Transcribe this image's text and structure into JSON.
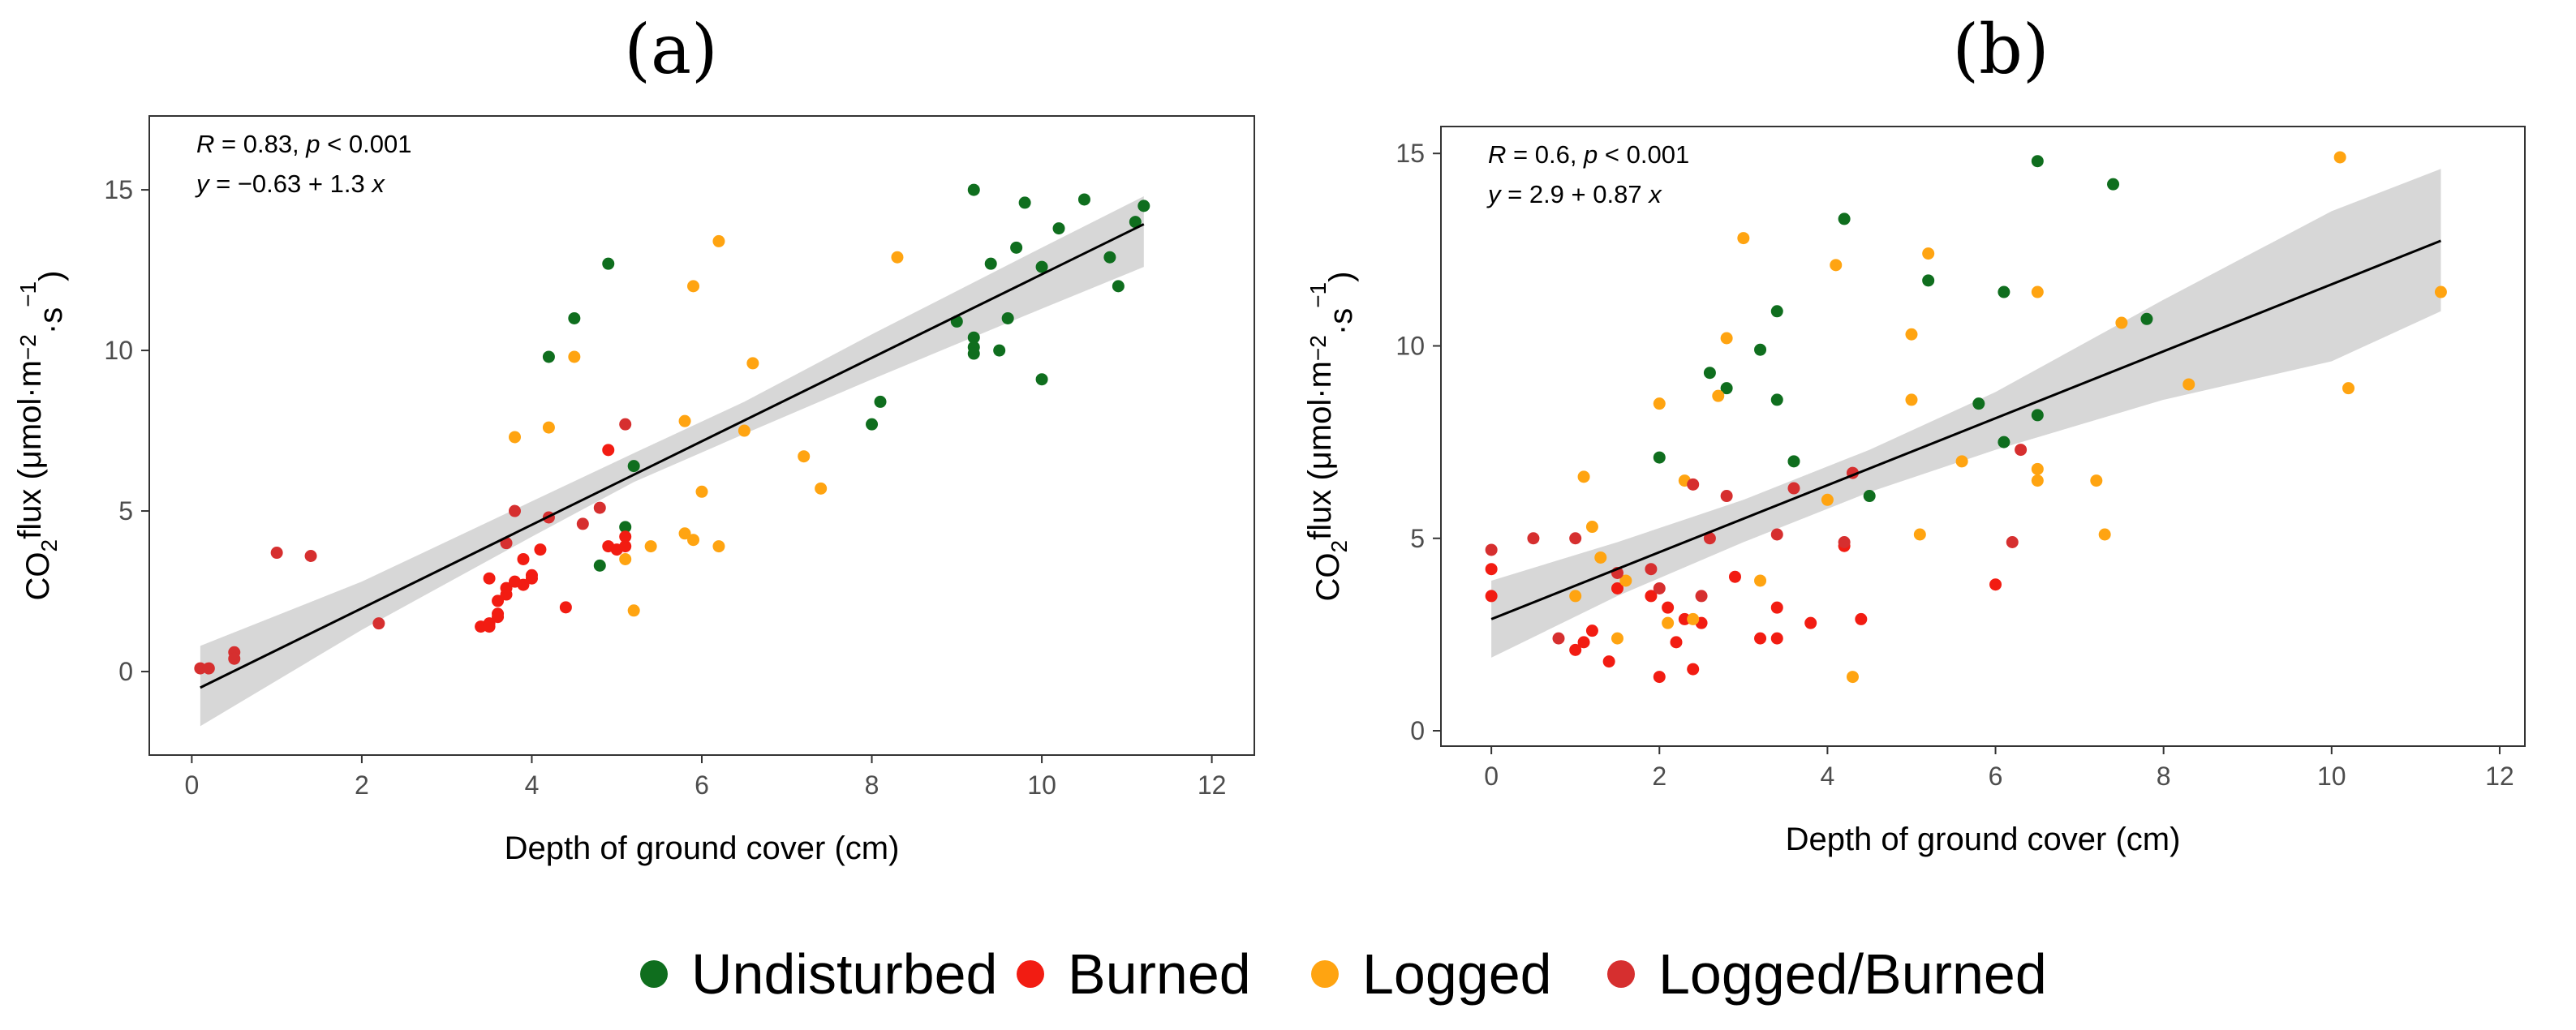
{
  "colors": {
    "Undisturbed": "#0f6e1e",
    "Burned": "#f21c12",
    "Logged": "#ffa411",
    "Logged/Burned": "#d62f2f",
    "fit_line": "#000000",
    "band": "#d3d3d3"
  },
  "legend": [
    "Undisturbed",
    "Burned",
    "Logged",
    "Logged/Burned"
  ],
  "chart_data": [
    {
      "type": "scatter",
      "panel_label": "(a)",
      "xlabel": "Depth of ground cover (cm)",
      "ylabel_parts": [
        "CO",
        "2",
        "flux (μmol·m",
        "−2",
        "·s",
        "−1",
        ")"
      ],
      "stat_line1": [
        "R",
        " = 0.83, ",
        "p",
        " < 0.001"
      ],
      "stat_line2": [
        "y",
        " = −0.63 + 1.3 ",
        "x"
      ],
      "xlim": [
        -0.5,
        12.5
      ],
      "ylim": [
        -2.6,
        17.3
      ],
      "xticks": [
        0,
        2,
        4,
        6,
        8,
        10,
        12
      ],
      "yticks": [
        0,
        5,
        10,
        15
      ],
      "grid": false,
      "fit": {
        "intercept": -0.63,
        "slope": 1.3,
        "x_range": [
          0.1,
          11.2
        ]
      },
      "band": [
        [
          0.1,
          -1.7,
          0.8
        ],
        [
          2.0,
          1.3,
          2.8
        ],
        [
          4.0,
          4.2,
          5.3
        ],
        [
          5.2,
          5.9,
          6.8
        ],
        [
          6.5,
          7.4,
          8.4
        ],
        [
          8.0,
          9.1,
          10.5
        ],
        [
          10.0,
          11.3,
          13.2
        ],
        [
          11.2,
          12.6,
          14.8
        ]
      ],
      "series": [
        {
          "name": "Undisturbed",
          "points": [
            [
              4.2,
              9.8
            ],
            [
              4.5,
              11
            ],
            [
              4.9,
              12.7
            ],
            [
              5.1,
              4.5
            ],
            [
              5.2,
              6.4
            ],
            [
              4.8,
              3.3
            ],
            [
              8.0,
              7.7
            ],
            [
              8.1,
              8.4
            ],
            [
              9.0,
              10.9
            ],
            [
              9.2,
              15.0
            ],
            [
              9.2,
              10.4
            ],
            [
              9.2,
              10.1
            ],
            [
              9.2,
              9.9
            ],
            [
              9.4,
              12.7
            ],
            [
              9.5,
              10
            ],
            [
              9.6,
              11
            ],
            [
              9.7,
              13.2
            ],
            [
              9.8,
              14.6
            ],
            [
              10.0,
              12.6
            ],
            [
              10.0,
              9.1
            ],
            [
              10.2,
              13.8
            ],
            [
              10.5,
              14.7
            ],
            [
              10.8,
              12.9
            ],
            [
              10.9,
              12
            ],
            [
              11.1,
              14
            ],
            [
              11.2,
              14.5
            ]
          ]
        },
        {
          "name": "Burned",
          "points": [
            [
              3.4,
              1.4
            ],
            [
              3.5,
              1.5
            ],
            [
              3.5,
              1.4
            ],
            [
              3.5,
              2.9
            ],
            [
              3.6,
              2.2
            ],
            [
              3.6,
              1.7
            ],
            [
              3.6,
              1.8
            ],
            [
              3.7,
              2.4
            ],
            [
              3.7,
              2.6
            ],
            [
              3.8,
              2.8
            ],
            [
              3.9,
              3.5
            ],
            [
              3.9,
              2.7
            ],
            [
              4.0,
              2.9
            ],
            [
              4.0,
              3.0
            ],
            [
              4.1,
              3.8
            ],
            [
              4.4,
              2.0
            ],
            [
              4.9,
              3.9
            ],
            [
              4.9,
              6.9
            ],
            [
              5.0,
              3.8
            ],
            [
              5.1,
              3.9
            ],
            [
              5.1,
              4.2
            ]
          ]
        },
        {
          "name": "Logged",
          "points": [
            [
              3.8,
              7.3
            ],
            [
              4.2,
              7.6
            ],
            [
              4.5,
              9.8
            ],
            [
              5.1,
              3.5
            ],
            [
              5.2,
              1.9
            ],
            [
              5.4,
              3.9
            ],
            [
              5.8,
              7.8
            ],
            [
              5.8,
              4.3
            ],
            [
              5.9,
              4.1
            ],
            [
              5.9,
              12
            ],
            [
              6.0,
              5.6
            ],
            [
              6.2,
              13.4
            ],
            [
              6.2,
              3.9
            ],
            [
              6.5,
              7.5
            ],
            [
              6.6,
              9.6
            ],
            [
              7.2,
              6.7
            ],
            [
              7.4,
              5.7
            ],
            [
              8.3,
              12.9
            ]
          ]
        },
        {
          "name": "Logged/Burned",
          "points": [
            [
              0.1,
              0.1
            ],
            [
              0.2,
              0.1
            ],
            [
              0.5,
              0.6
            ],
            [
              0.5,
              0.4
            ],
            [
              1.0,
              3.7
            ],
            [
              1.4,
              3.6
            ],
            [
              2.2,
              1.5
            ],
            [
              3.7,
              4.0
            ],
            [
              3.8,
              5.0
            ],
            [
              4.2,
              4.8
            ],
            [
              4.6,
              4.6
            ],
            [
              4.8,
              5.1
            ],
            [
              5.1,
              7.7
            ]
          ]
        }
      ]
    },
    {
      "type": "scatter",
      "panel_label": "(b)",
      "xlabel": "Depth of ground cover (cm)",
      "ylabel_parts": [
        "CO",
        "2",
        "flux (μmol·m",
        "−2",
        "·s",
        "−1",
        ")"
      ],
      "stat_line1": [
        "R",
        " = 0.6, ",
        "p",
        " < 0.001"
      ],
      "stat_line2": [
        "y",
        " = 2.9 + 0.87 ",
        "x"
      ],
      "xlim": [
        -0.6,
        12.3
      ],
      "ylim": [
        -0.4,
        15.7
      ],
      "xticks": [
        0,
        2,
        4,
        6,
        8,
        10,
        12
      ],
      "yticks": [
        0,
        5,
        10,
        15
      ],
      "grid": false,
      "fit": {
        "intercept": 2.9,
        "slope": 0.87,
        "x_range": [
          0,
          11.3
        ]
      },
      "band": [
        [
          0.0,
          1.9,
          3.9
        ],
        [
          1.5,
          3.5,
          4.9
        ],
        [
          3.0,
          4.9,
          6.0
        ],
        [
          4.5,
          6.2,
          7.3
        ],
        [
          6.0,
          7.3,
          8.8
        ],
        [
          8.0,
          8.6,
          11.2
        ],
        [
          10.0,
          9.6,
          13.5
        ],
        [
          11.3,
          10.9,
          14.6
        ]
      ],
      "series": [
        {
          "name": "Undisturbed",
          "points": [
            [
              2.0,
              7.1
            ],
            [
              2.6,
              9.3
            ],
            [
              2.8,
              8.9
            ],
            [
              3.2,
              9.9
            ],
            [
              3.4,
              10.9
            ],
            [
              3.4,
              8.6
            ],
            [
              3.6,
              7.0
            ],
            [
              4.2,
              13.3
            ],
            [
              4.5,
              6.1
            ],
            [
              5.2,
              11.7
            ],
            [
              5.8,
              8.5
            ],
            [
              6.1,
              11.4
            ],
            [
              6.1,
              7.5
            ],
            [
              6.5,
              14.8
            ],
            [
              6.5,
              8.2
            ],
            [
              7.4,
              14.2
            ],
            [
              7.8,
              10.7
            ]
          ]
        },
        {
          "name": "Burned",
          "points": [
            [
              0.0,
              4.2
            ],
            [
              0.0,
              3.5
            ],
            [
              1.0,
              2.1
            ],
            [
              1.1,
              2.3
            ],
            [
              1.2,
              2.6
            ],
            [
              1.4,
              1.8
            ],
            [
              1.5,
              3.7
            ],
            [
              1.9,
              3.5
            ],
            [
              2.0,
              1.4
            ],
            [
              2.1,
              3.2
            ],
            [
              2.2,
              2.3
            ],
            [
              2.3,
              2.9
            ],
            [
              2.4,
              1.6
            ],
            [
              2.5,
              2.8
            ],
            [
              2.9,
              4.0
            ],
            [
              3.2,
              2.4
            ],
            [
              3.4,
              2.4
            ],
            [
              3.4,
              3.2
            ],
            [
              3.8,
              2.8
            ],
            [
              4.2,
              4.8
            ],
            [
              4.4,
              2.9
            ],
            [
              6.0,
              3.8
            ]
          ]
        },
        {
          "name": "Logged",
          "points": [
            [
              1.0,
              3.5
            ],
            [
              1.1,
              6.6
            ],
            [
              1.2,
              5.3
            ],
            [
              1.3,
              4.5
            ],
            [
              1.5,
              2.4
            ],
            [
              1.6,
              3.9
            ],
            [
              2.0,
              8.5
            ],
            [
              2.1,
              2.8
            ],
            [
              2.3,
              6.5
            ],
            [
              2.4,
              2.9
            ],
            [
              2.7,
              8.7
            ],
            [
              2.8,
              10.2
            ],
            [
              3.0,
              12.8
            ],
            [
              3.2,
              3.9
            ],
            [
              4.0,
              6.0
            ],
            [
              4.1,
              12.1
            ],
            [
              4.3,
              1.4
            ],
            [
              5.0,
              10.3
            ],
            [
              5.0,
              8.6
            ],
            [
              5.1,
              5.1
            ],
            [
              5.2,
              12.4
            ],
            [
              5.6,
              7.0
            ],
            [
              6.5,
              11.4
            ],
            [
              6.5,
              6.8
            ],
            [
              6.5,
              6.5
            ],
            [
              7.2,
              6.5
            ],
            [
              7.3,
              5.1
            ],
            [
              7.5,
              10.6
            ],
            [
              8.3,
              9.0
            ],
            [
              10.1,
              14.9
            ],
            [
              10.2,
              8.9
            ],
            [
              11.3,
              11.4
            ]
          ]
        },
        {
          "name": "Logged/Burned",
          "points": [
            [
              0.0,
              4.7
            ],
            [
              0.5,
              5.0
            ],
            [
              0.8,
              2.4
            ],
            [
              1.0,
              5.0
            ],
            [
              1.5,
              4.1
            ],
            [
              1.9,
              4.2
            ],
            [
              2.0,
              3.7
            ],
            [
              2.4,
              6.4
            ],
            [
              2.5,
              3.5
            ],
            [
              2.6,
              5.0
            ],
            [
              2.8,
              6.1
            ],
            [
              3.4,
              5.1
            ],
            [
              3.6,
              6.3
            ],
            [
              4.2,
              4.9
            ],
            [
              4.3,
              6.7
            ],
            [
              6.2,
              4.9
            ],
            [
              6.3,
              7.3
            ]
          ]
        }
      ]
    }
  ]
}
